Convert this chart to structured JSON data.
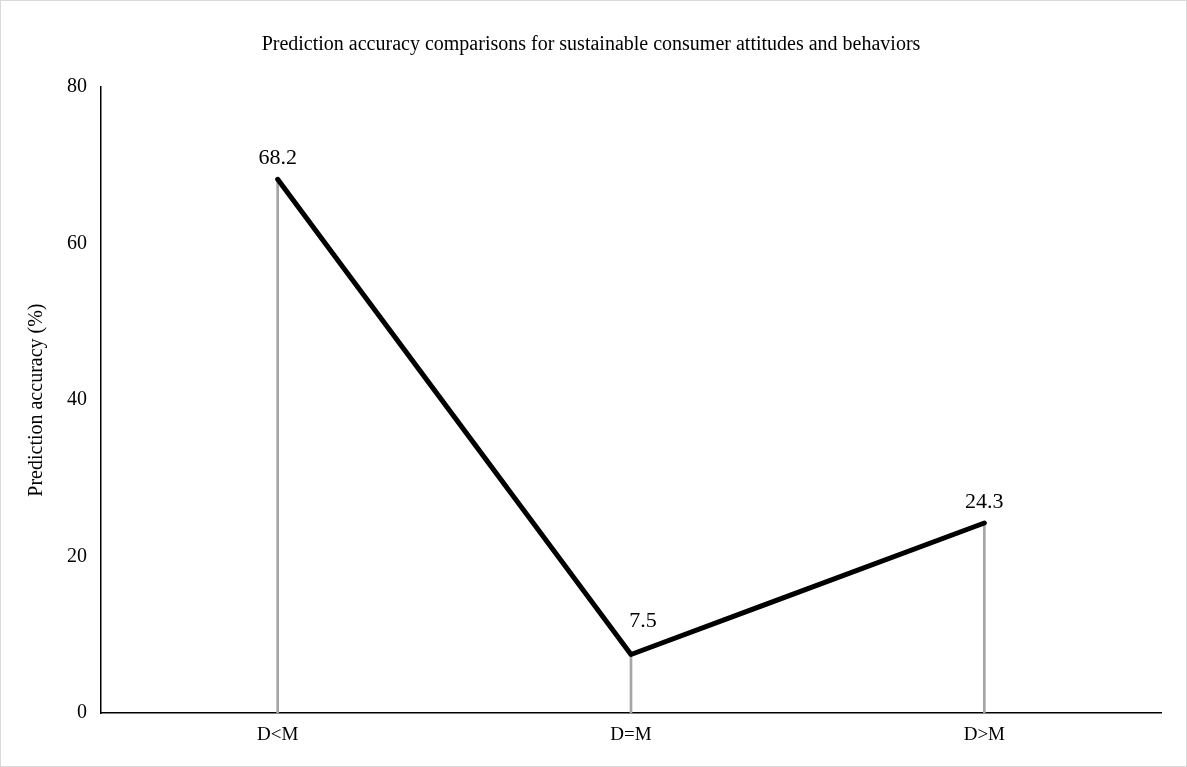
{
  "chart_data": {
    "type": "line",
    "title": "Prediction accuracy comparisons for sustainable consumer attitudes and behaviors",
    "ylabel": "Prediction accuracy (%)",
    "categories": [
      "D<M",
      "D=M",
      "D>M"
    ],
    "series": [
      {
        "color": "#000000",
        "values": [
          68.2,
          7.5,
          24.3
        ],
        "value_labels": [
          "68.2",
          "7.5",
          "24.3"
        ]
      },
      {
        "type": "bar",
        "color": "#a6a6a6",
        "values": [
          68.2,
          7.5,
          24.3
        ]
      }
    ],
    "ylim": [
      0,
      80
    ],
    "yticks": [
      0,
      20,
      40,
      60,
      80
    ],
    "grid": false,
    "legend": false,
    "marker": "none",
    "line_style": "solid"
  }
}
